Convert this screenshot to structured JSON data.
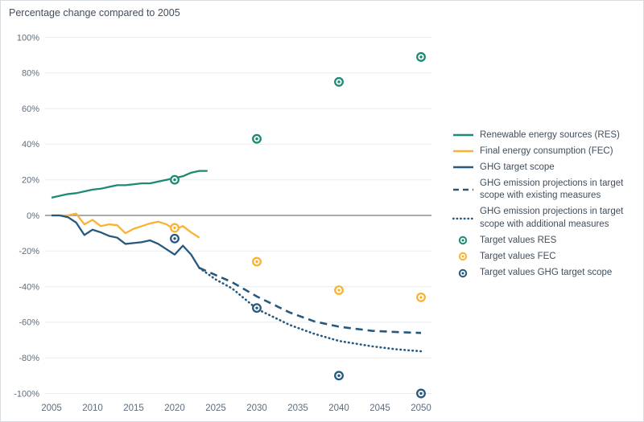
{
  "title": "Percentage change compared to 2005",
  "colors": {
    "res": "#1d8a74",
    "fec": "#f9b234",
    "ghg": "#27597f",
    "grid": "#e9ebee",
    "zero_line": "#a6abb0",
    "text": "#414e5c",
    "tick_text": "#5f6c7b",
    "border": "#d9dde2",
    "background": "#ffffff"
  },
  "chart_data": {
    "type": "line",
    "title": "Percentage change compared to 2005",
    "xlabel": "",
    "ylabel": "",
    "xlim": [
      2005,
      2050
    ],
    "ylim": [
      -100,
      100
    ],
    "xticks": [
      2005,
      2010,
      2015,
      2020,
      2025,
      2030,
      2035,
      2040,
      2045,
      2050
    ],
    "yticks": [
      100,
      80,
      60,
      40,
      20,
      0,
      -20,
      -40,
      -60,
      -80,
      -100
    ],
    "ytick_suffix": "%",
    "grid": "horizontal",
    "legend_position": "right",
    "series": [
      {
        "name": "Renewable energy sources (RES)",
        "type": "line",
        "style": "solid",
        "color": "res",
        "x": [
          2005,
          2006,
          2007,
          2008,
          2009,
          2010,
          2011,
          2012,
          2013,
          2014,
          2015,
          2016,
          2017,
          2018,
          2019,
          2020,
          2021,
          2022,
          2023,
          2024
        ],
        "y": [
          10,
          11,
          12,
          12.5,
          13.5,
          14.5,
          15,
          16,
          17,
          17,
          17.5,
          18,
          18,
          19,
          20,
          21,
          22,
          24,
          25,
          25
        ]
      },
      {
        "name": "Final energy consumption (FEC)",
        "type": "line",
        "style": "solid",
        "color": "fec",
        "x": [
          2005,
          2006,
          2007,
          2008,
          2009,
          2010,
          2011,
          2012,
          2013,
          2014,
          2015,
          2016,
          2017,
          2018,
          2019,
          2020,
          2021,
          2022,
          2023
        ],
        "y": [
          0,
          0,
          0,
          1,
          -5,
          -2.5,
          -6,
          -5,
          -5.5,
          -10,
          -7.5,
          -6,
          -4.5,
          -3.5,
          -5,
          -8,
          -6,
          -9.5,
          -12.5
        ]
      },
      {
        "name": "GHG target scope",
        "type": "line",
        "style": "solid",
        "color": "ghg",
        "x": [
          2005,
          2006,
          2007,
          2008,
          2009,
          2010,
          2011,
          2012,
          2013,
          2014,
          2015,
          2016,
          2017,
          2018,
          2019,
          2020,
          2021,
          2022,
          2023
        ],
        "y": [
          0,
          0,
          -1,
          -4,
          -11,
          -8,
          -9.5,
          -11.5,
          -12.5,
          -16,
          -15.5,
          -15,
          -14,
          -16,
          -19,
          -22,
          -17,
          -22,
          -29.5
        ]
      },
      {
        "name": "GHG emission projections in target scope with existing measures",
        "type": "line",
        "style": "dashed",
        "color": "ghg",
        "x": [
          2023,
          2025,
          2027,
          2030,
          2034,
          2037,
          2040,
          2044,
          2047,
          2050
        ],
        "y": [
          -29.5,
          -33.5,
          -37.5,
          -45.5,
          -54.5,
          -59.5,
          -62.5,
          -64.8,
          -65.5,
          -66
        ]
      },
      {
        "name": "GHG emission projections in target scope with additional measures",
        "type": "line",
        "style": "dotted",
        "color": "ghg",
        "x": [
          2023,
          2025,
          2027,
          2030,
          2034,
          2037,
          2040,
          2044,
          2047,
          2050
        ],
        "y": [
          -29.5,
          -36,
          -41,
          -52.5,
          -61.5,
          -66.5,
          -70.5,
          -73.5,
          -75.2,
          -76.3
        ]
      },
      {
        "name": "Target values RES",
        "type": "scatter",
        "marker": "ring",
        "color": "res",
        "x": [
          2020,
          2030,
          2040,
          2050
        ],
        "y": [
          20,
          43,
          75,
          89
        ]
      },
      {
        "name": "Target values FEC",
        "type": "scatter",
        "marker": "ring",
        "color": "fec",
        "x": [
          2020,
          2030,
          2040,
          2050
        ],
        "y": [
          -7,
          -26,
          -42,
          -46
        ]
      },
      {
        "name": "Target values GHG target scope",
        "type": "scatter",
        "marker": "ring",
        "color": "ghg",
        "x": [
          2020,
          2030,
          2040,
          2050
        ],
        "y": [
          -13,
          -52,
          -90,
          -100
        ]
      }
    ]
  }
}
